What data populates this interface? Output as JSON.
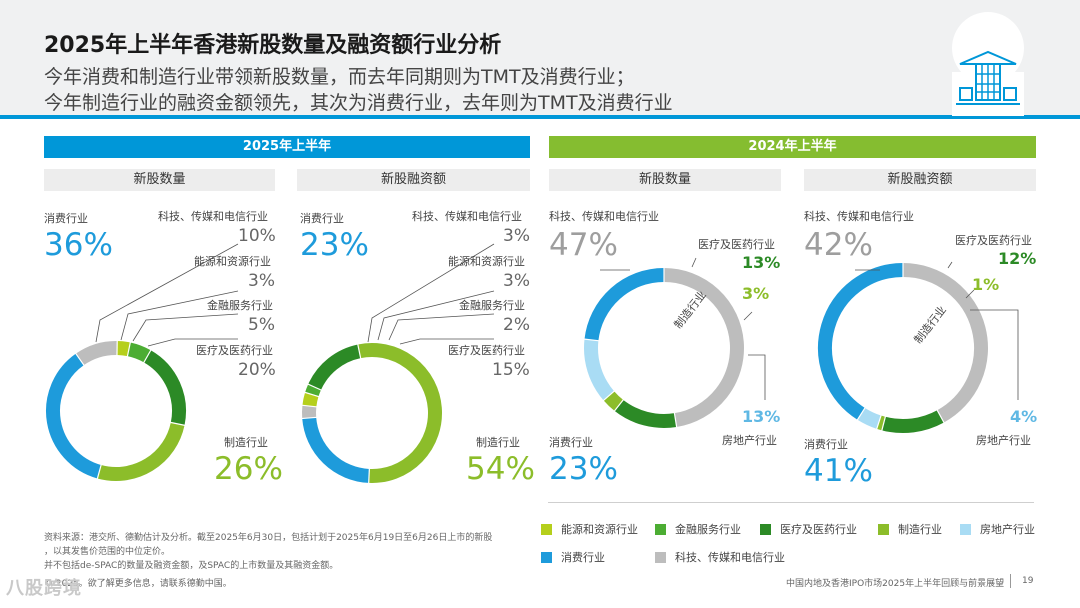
{
  "header": {
    "title": "2025年上半年香港新股数量及融资额行业分析",
    "subtitle_line1": "今年消费和制造行业带领新股数量，而去年同期则为TMT及消费行业；",
    "subtitle_line2": "今年制造行业的融资金额领先，其次为消费行业，去年则为TMT及消费行业"
  },
  "colors": {
    "energy": "#b5cf1c",
    "finance": "#4cad33",
    "medical": "#2c8a26",
    "manufacturing": "#8cbd2a",
    "realestate": "#a9dcf4",
    "consumer": "#1e9bdb",
    "tmt": "#bdbdbd",
    "banner_2025": "#0097d8",
    "banner_2024": "#85bd30"
  },
  "sections": {
    "y2025": "2025年上半年",
    "y2024": "2024年上半年"
  },
  "chart_data": [
    {
      "type": "pie",
      "variant": "donut",
      "title": "新股数量",
      "period": "2025年上半年",
      "categories": [
        "消费行业",
        "科技、传媒和电信行业",
        "能源和资源行业",
        "金融服务行业",
        "医疗及医药行业",
        "制造行业"
      ],
      "values": [
        36,
        10,
        3,
        5,
        20,
        26
      ],
      "labels": [
        "36%",
        "10%",
        "3%",
        "5%",
        "20%",
        "26%"
      ]
    },
    {
      "type": "pie",
      "variant": "donut",
      "title": "新股融资额",
      "period": "2025年上半年",
      "categories": [
        "消费行业",
        "科技、传媒和电信行业",
        "能源和资源行业",
        "金融服务行业",
        "医疗及医药行业",
        "制造行业"
      ],
      "values": [
        23,
        3,
        3,
        2,
        15,
        54
      ],
      "labels": [
        "23%",
        "3%",
        "3%",
        "2%",
        "15%",
        "54%"
      ]
    },
    {
      "type": "pie",
      "variant": "donut",
      "title": "新股数量",
      "period": "2024年上半年",
      "categories": [
        "科技、传媒和电信行业",
        "医疗及医药行业",
        "制造行业",
        "房地产行业",
        "消费行业"
      ],
      "values": [
        47,
        13,
        3,
        13,
        23
      ],
      "labels": [
        "47%",
        "13%",
        "3%",
        "13%",
        "23%"
      ]
    },
    {
      "type": "pie",
      "variant": "donut",
      "title": "新股融资额",
      "period": "2024年上半年",
      "categories": [
        "科技、传媒和电信行业",
        "医疗及医药行业",
        "制造行业",
        "房地产行业",
        "消费行业"
      ],
      "values": [
        42,
        12,
        1,
        4,
        41
      ],
      "labels": [
        "42%",
        "12%",
        "1%",
        "4%",
        "41%"
      ]
    }
  ],
  "chart_labels": {
    "consumer": "消费行业",
    "tmt": "科技、传媒和电信行业",
    "energy": "能源和资源行业",
    "finance": "金融服务行业",
    "medical": "医疗及医药行业",
    "manufacturing": "制造行业",
    "realestate": "房地产行业"
  },
  "legend": [
    {
      "key": "energy",
      "label": "能源和资源行业"
    },
    {
      "key": "finance",
      "label": "金融服务行业"
    },
    {
      "key": "medical",
      "label": "医疗及医药行业"
    },
    {
      "key": "manufacturing",
      "label": "制造行业"
    },
    {
      "key": "realestate",
      "label": "房地产行业"
    },
    {
      "key": "consumer",
      "label": "消费行业"
    },
    {
      "key": "tmt",
      "label": "科技、传媒和电信行业"
    }
  ],
  "footnotes": {
    "line1": "资料来源：港交所、德勤估计及分析。截至2025年6月30日，包括计划于2025年6月19日至6月26日上市的新股",
    "line2": "，以其发售价范围的中位定价。",
    "line3": "并不包括de-SPAC的数量及融资金额，及SPAC的上市数量及其融资金额。",
    "copyright": "© 2025。欲了解更多信息，请联系德勤中国。",
    "report_title": "中国内地及香港IPO市场2025年上半年回顾与前景展望",
    "page_number": "19",
    "watermark": "八股跨境"
  }
}
